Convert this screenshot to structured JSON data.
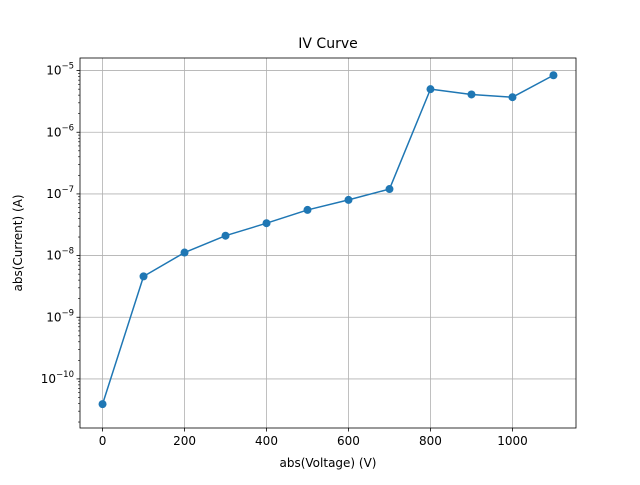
{
  "chart_data": {
    "type": "line",
    "title": "IV Curve",
    "xlabel": "abs(Voltage) (V)",
    "ylabel": "abs(Current) (A)",
    "y_scale": "log",
    "grid": true,
    "xlim": [
      -55,
      1155
    ],
    "ylim": [
      1.6e-11,
      1.6e-05
    ],
    "x_ticks": [
      0,
      200,
      400,
      600,
      800,
      1000
    ],
    "x_tick_labels": [
      "0",
      "200",
      "400",
      "600",
      "800",
      "1000"
    ],
    "y_ticks": [
      {
        "value": 1e-10,
        "base": "10",
        "exp": "−10"
      },
      {
        "value": 1e-09,
        "base": "10",
        "exp": "−9"
      },
      {
        "value": 1e-08,
        "base": "10",
        "exp": "−8"
      },
      {
        "value": 1e-07,
        "base": "10",
        "exp": "−7"
      },
      {
        "value": 1e-06,
        "base": "10",
        "exp": "−6"
      },
      {
        "value": 1e-05,
        "base": "10",
        "exp": "−5"
      }
    ],
    "series": [
      {
        "color": "#1f77b4",
        "marker": "circle",
        "x": [
          0,
          100,
          200,
          300,
          400,
          500,
          600,
          700,
          800,
          900,
          1000,
          1100
        ],
        "y": [
          3.9e-11,
          4.6e-09,
          1.12e-08,
          2.1e-08,
          3.35e-08,
          5.5e-08,
          8e-08,
          1.2e-07,
          5e-06,
          4.1e-06,
          3.7e-06,
          8.4e-06
        ]
      }
    ]
  }
}
